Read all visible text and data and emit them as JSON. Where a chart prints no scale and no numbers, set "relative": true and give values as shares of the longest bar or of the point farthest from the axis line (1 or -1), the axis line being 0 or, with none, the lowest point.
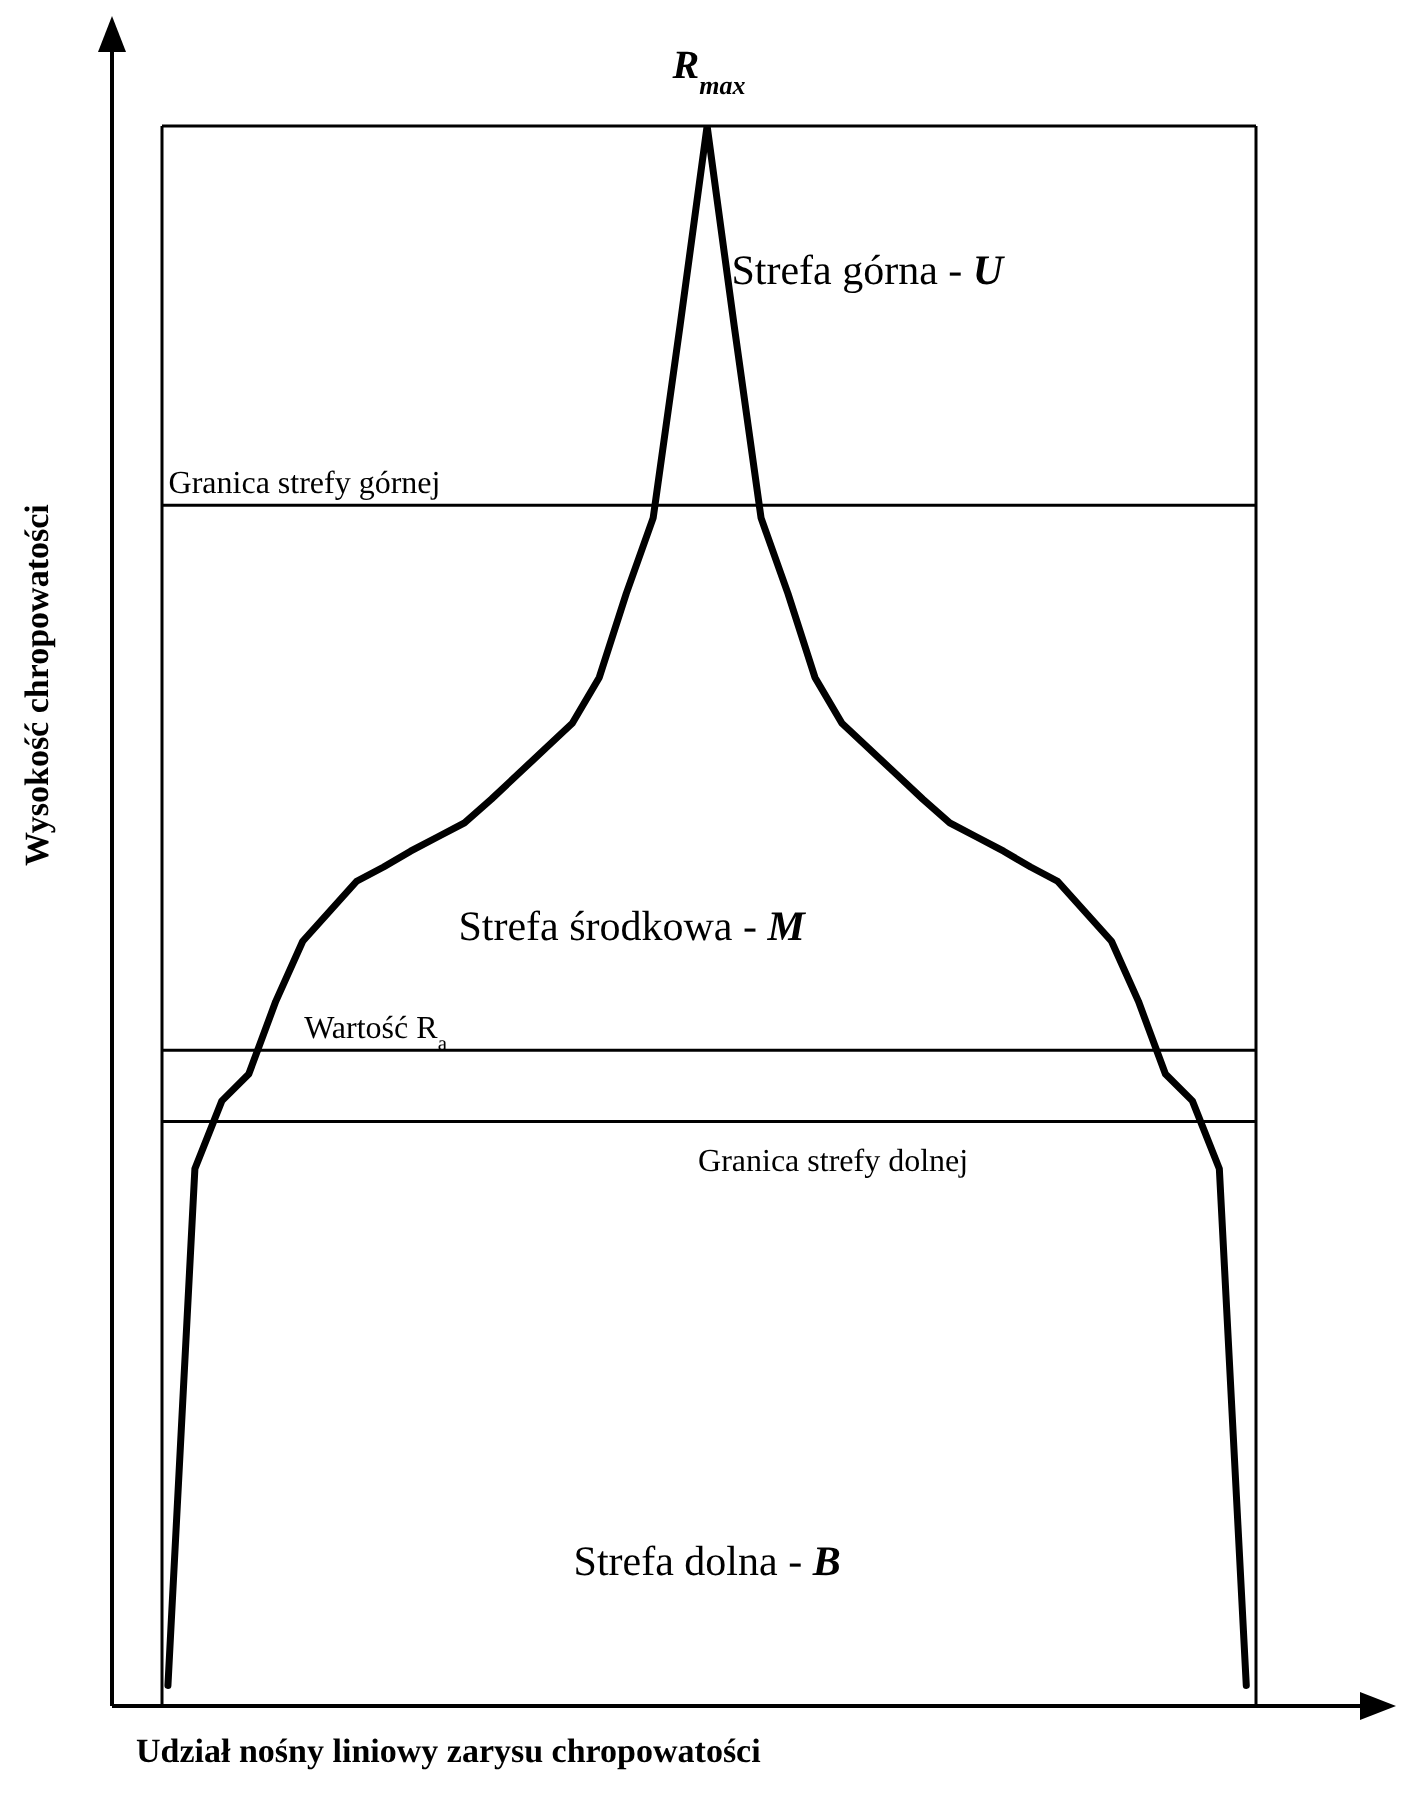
{
  "chart_data": {
    "type": "line",
    "xlabel": "Udział nośny liniowy zarysu chropowatości",
    "ylabel": "Wysokość chropowatości",
    "relative": true,
    "marker": "none",
    "line_style": "solid",
    "color": "#000000",
    "categories": [
      null,
      null,
      null,
      null,
      null,
      null,
      null,
      null,
      null,
      null,
      null,
      null,
      null,
      null,
      null,
      null,
      null,
      null,
      null,
      null,
      null,
      null,
      null,
      null,
      null,
      null,
      null,
      null,
      null,
      null,
      null,
      null,
      null,
      null,
      null,
      null,
      null,
      null,
      null,
      null,
      null
    ],
    "values": [
      0.013,
      0.34,
      0.383,
      0.4,
      0.446,
      0.484,
      0.503,
      0.522,
      0.531,
      0.541,
      0.55,
      0.559,
      0.574,
      0.59,
      0.606,
      0.622,
      0.651,
      0.704,
      0.752,
      0.874,
      1.0,
      0.874,
      0.752,
      0.704,
      0.651,
      0.622,
      0.606,
      0.59,
      0.574,
      0.559,
      0.55,
      0.541,
      0.531,
      0.522,
      0.503,
      0.484,
      0.446,
      0.4,
      0.383,
      0.34,
      0.013
    ],
    "ref_lines": [
      {
        "axis": "y",
        "value": 1.0,
        "label": "R$_{max}$"
      },
      {
        "axis": "y",
        "value": 0.76,
        "label": "Granica strefy górnej"
      },
      {
        "axis": "y",
        "value": 0.415,
        "label": "Wartość R$_{a}$"
      },
      {
        "axis": "y",
        "value": 0.37,
        "label": "Granica strefy dolnej"
      }
    ],
    "annotations": [
      "Strefa górna - U",
      "Strefa środkowa - M",
      "Strefa dolna - B"
    ]
  }
}
